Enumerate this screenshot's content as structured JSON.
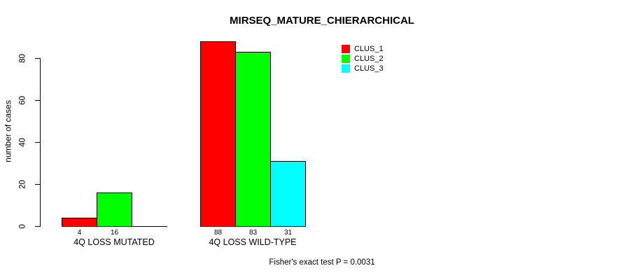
{
  "chart_data": {
    "type": "bar",
    "title": "MIRSEQ_MATURE_CHIERARCHICAL",
    "ylabel": "number of cases",
    "xlabel": "",
    "yticks": [
      0,
      20,
      40,
      60,
      80
    ],
    "ylim": [
      0,
      88
    ],
    "grid": false,
    "background_color": "#ffffff",
    "axis_color": "#000000",
    "categories": [
      "4Q LOSS MUTATED",
      "4Q LOSS WILD-TYPE"
    ],
    "series": [
      {
        "name": "CLUS_1",
        "color": "#ff0000",
        "values": [
          4,
          88
        ]
      },
      {
        "name": "CLUS_2",
        "color": "#00ff00",
        "values": [
          16,
          83
        ]
      },
      {
        "name": "CLUS_3",
        "color": "#00ffff",
        "values": [
          0,
          31
        ]
      }
    ],
    "bar_value_labels": [
      [
        "4",
        "16",
        ""
      ],
      [
        "88",
        "83",
        "31"
      ]
    ],
    "legend": {
      "position": "top-right",
      "entries": [
        "CLUS_1",
        "CLUS_2",
        "CLUS_3"
      ]
    },
    "annotation": "Fisher's exact test P = 0.0031"
  }
}
